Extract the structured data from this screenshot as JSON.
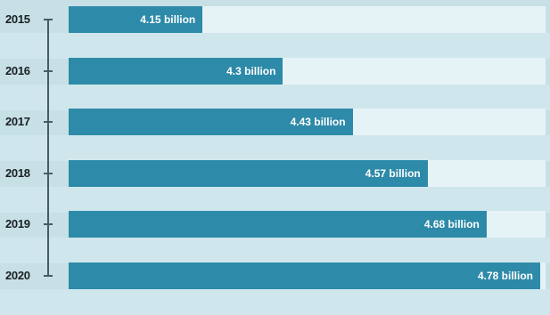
{
  "chart_data": {
    "type": "bar",
    "orientation": "horizontal",
    "categories": [
      "2015",
      "2016",
      "2017",
      "2018",
      "2019",
      "2020"
    ],
    "values": [
      4.15,
      4.3,
      4.43,
      4.57,
      4.68,
      4.78
    ],
    "value_labels": [
      "4.15 billion",
      "4.3 billion",
      "4.43 billion",
      "4.57 billion",
      "4.68 billion",
      "4.78 billion"
    ],
    "title": "",
    "xlabel": "",
    "ylabel": "",
    "xlim": [
      3.9,
      4.79
    ],
    "grid": false,
    "colors": {
      "bar": "#2d8aa8",
      "track": "#e6f3f6",
      "background": "#c6e0e6",
      "timeline": "#4a5a62"
    }
  }
}
